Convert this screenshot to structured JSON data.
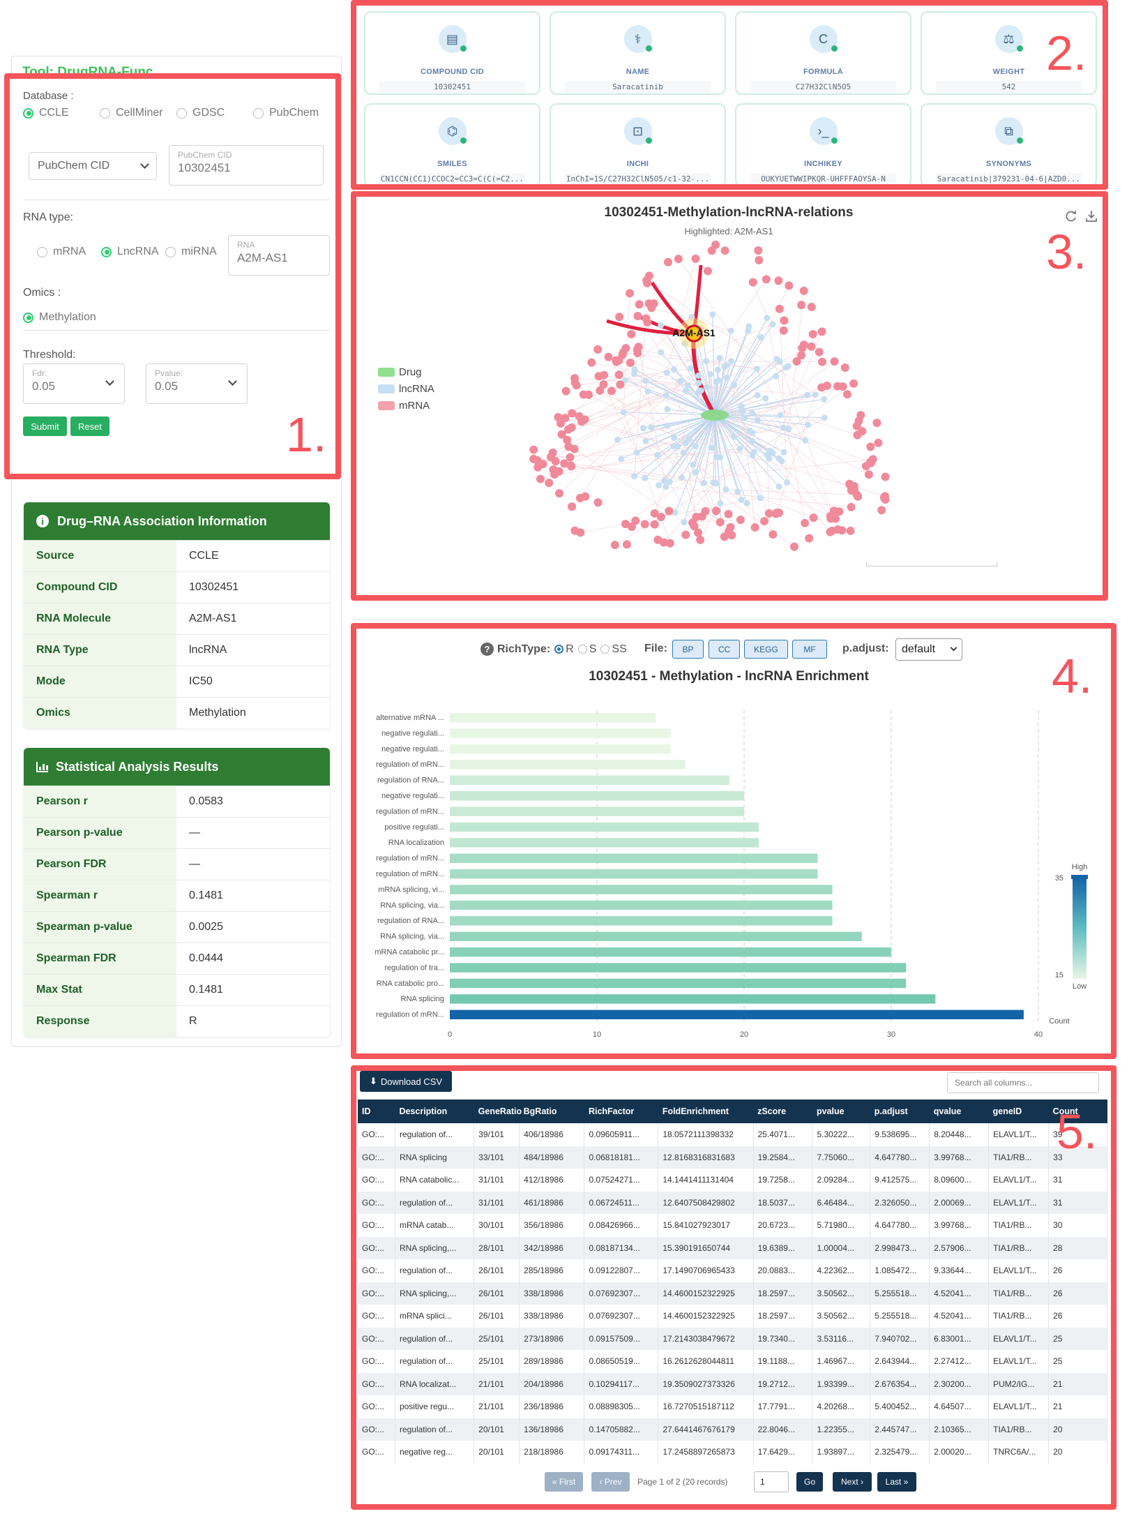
{
  "tool_title": "Tool: DrugRNA-Func",
  "annotations": [
    "1.",
    "2.",
    "3.",
    "4.",
    "5."
  ],
  "form": {
    "database_label": "Database :",
    "databases": [
      "CCLE",
      "CellMiner",
      "GDSC",
      "PubChem"
    ],
    "database_selected": "CCLE",
    "id_type": "PubChem CID",
    "cid_label": "PubChem CID",
    "cid_value": "10302451",
    "rna_type_label": "RNA type:",
    "rna_types": [
      "mRNA",
      "LncRNA",
      "miRNA"
    ],
    "rna_type_selected": "LncRNA",
    "rna_label": "RNA",
    "rna_value": "A2M-AS1",
    "omics_label": "Omics :",
    "omics": "Methylation",
    "threshold_label": "Threshold:",
    "fdr_label": "Fdr:",
    "fdr_value": "0.05",
    "pvalue_label": "Pvalue:",
    "pvalue_value": "0.05",
    "submit": "Submit",
    "reset": "Reset"
  },
  "assoc": {
    "title": "Drug–RNA Association Information",
    "rows": [
      {
        "k": "Source",
        "v": "CCLE"
      },
      {
        "k": "Compound CID",
        "v": "10302451"
      },
      {
        "k": "RNA Molecule",
        "v": "A2M-AS1"
      },
      {
        "k": "RNA Type",
        "v": "lncRNA"
      },
      {
        "k": "Mode",
        "v": "IC50"
      },
      {
        "k": "Omics",
        "v": "Methylation"
      }
    ]
  },
  "stats": {
    "title": "Statistical Analysis Results",
    "rows": [
      {
        "k": "Pearson r",
        "v": "0.0583"
      },
      {
        "k": "Pearson p-value",
        "v": "—"
      },
      {
        "k": "Pearson FDR",
        "v": "—"
      },
      {
        "k": "Spearman r",
        "v": "0.1481"
      },
      {
        "k": "Spearman p-value",
        "v": "0.0025"
      },
      {
        "k": "Spearman FDR",
        "v": "0.0444"
      },
      {
        "k": "Max Stat",
        "v": "0.1481"
      },
      {
        "k": "Response",
        "v": "R"
      }
    ]
  },
  "compound": [
    {
      "label": "COMPOUND CID",
      "value": "10302451",
      "icon": "pill-bottle-icon"
    },
    {
      "label": "NAME",
      "value": "Saracatinib",
      "icon": "capsule-icon"
    },
    {
      "label": "FORMULA",
      "value": "C27H32ClN5O5",
      "icon": "formula-icon"
    },
    {
      "label": "WEIGHT",
      "value": "542",
      "icon": "scale-icon"
    },
    {
      "label": "SMILES",
      "value": "CN1CCN(CC1)CCOC2=CC3=C(C(=C2...",
      "icon": "molecule-icon"
    },
    {
      "label": "INCHI",
      "value": "InChI=1S/C27H32ClN5O5/c1-32-...",
      "icon": "scan-icon"
    },
    {
      "label": "INCHIKEY",
      "value": "OUKYUETWWIPKQR-UHFFFAOYSA-N",
      "icon": "terminal-icon"
    },
    {
      "label": "SYNONYMS",
      "value": "Saracatinib|379231-04-6|AZD0...",
      "icon": "copy-icon"
    }
  ],
  "network": {
    "title": "10302451-Methylation-lncRNA-relations",
    "subtitle": "Highlighted: A2M-AS1",
    "highlight_label": "A2M-AS1",
    "legend": [
      {
        "name": "Drug",
        "color": "#90e090"
      },
      {
        "name": "lncRNA",
        "color": "#c6def2"
      },
      {
        "name": "mRNA",
        "color": "#f4a2ae"
      }
    ]
  },
  "enrichment": {
    "rich_type_label": "RichType:",
    "rich_types": [
      "R",
      "S",
      "SS"
    ],
    "rich_type_selected": "R",
    "file_label": "File:",
    "files": [
      "BP",
      "CC",
      "KEGG",
      "MF"
    ],
    "padjust_label": "p.adjust:",
    "padjust_value": "default"
  },
  "chart_data": {
    "type": "bar",
    "title": "10302451 - Methylation - lncRNA Enrichment",
    "orientation": "horizontal",
    "categories": [
      "alternative mRNA ...",
      "negative regulati...",
      "negative regulati...",
      "regulation of mRN...",
      "regulation of RNA...",
      "negative regulati...",
      "regulation of mRN...",
      "positive regulati...",
      "RNA localization",
      "regulation of mRN...",
      "regulation of mRN...",
      "mRNA splicing, vi...",
      "RNA splicing, via...",
      "regulation of RNA...",
      "RNA splicing, via...",
      "mRNA catabolic pr...",
      "regulation of tra...",
      "RNA catabolic pro...",
      "RNA splicing",
      "regulation of mRN..."
    ],
    "values": [
      14,
      15,
      15,
      16,
      19,
      20,
      20,
      21,
      21,
      25,
      25,
      26,
      26,
      26,
      28,
      30,
      31,
      31,
      33,
      39
    ],
    "xlim": [
      0,
      40
    ],
    "xticks": [
      0,
      10,
      20,
      30,
      40
    ],
    "colorbar": {
      "high_label": "High",
      "low_label": "Low",
      "max": "35",
      "min": "15",
      "title": "Count",
      "high_color": "#1464a8",
      "low_color": "#e8f6e4"
    },
    "grid": true
  },
  "table": {
    "download_label": "Download CSV",
    "search_placeholder": "Search all columns...",
    "columns": [
      "ID",
      "Description",
      "GeneRatio",
      "BgRatio",
      "RichFactor",
      "FoldEnrichment",
      "zScore",
      "pvalue",
      "p.adjust",
      "qvalue",
      "geneID",
      "Count"
    ],
    "rows": [
      [
        "GO:...",
        "regulation of...",
        "39/101",
        "406/18986",
        "0.09605911...",
        "18.0572111398332",
        "25.4071...",
        "5.30222...",
        "9.538695...",
        "8.20448...",
        "ELAVL1/T...",
        "39"
      ],
      [
        "GO:...",
        "RNA splicing",
        "33/101",
        "484/18986",
        "0.06818181...",
        "12.8168316831683",
        "19.2584...",
        "7.75060...",
        "4.647780...",
        "3.99768...",
        "TIA1/RB...",
        "33"
      ],
      [
        "GO:...",
        "RNA catabolic...",
        "31/101",
        "412/18986",
        "0.07524271...",
        "14.1441411131404",
        "19.7258...",
        "2.09284...",
        "9.412575...",
        "8.09600...",
        "ELAVL1/T...",
        "31"
      ],
      [
        "GO:...",
        "regulation of...",
        "31/101",
        "461/18986",
        "0.06724511...",
        "12.6407508429802",
        "18.5037...",
        "6.46484...",
        "2.326050...",
        "2.00069...",
        "ELAVL1/T...",
        "31"
      ],
      [
        "GO:...",
        "mRNA catab...",
        "30/101",
        "356/18986",
        "0.08426966...",
        "15.841027923017",
        "20.6723...",
        "5.71980...",
        "4.647780...",
        "3.99768...",
        "TIA1/RB...",
        "30"
      ],
      [
        "GO:...",
        "RNA splicing,...",
        "28/101",
        "342/18986",
        "0.08187134...",
        "15.390191650744",
        "19.6389...",
        "1.00004...",
        "2.998473...",
        "2.57906...",
        "TIA1/RB...",
        "28"
      ],
      [
        "GO:...",
        "regulation of...",
        "26/101",
        "285/18986",
        "0.09122807...",
        "17.1490706965433",
        "20.0883...",
        "4.22362...",
        "1.085472...",
        "9.33644...",
        "ELAVL1/T...",
        "26"
      ],
      [
        "GO:...",
        "RNA splicing,...",
        "26/101",
        "338/18986",
        "0.07692307...",
        "14.4600152322925",
        "18.2597...",
        "3.50562...",
        "5.255518...",
        "4.52041...",
        "TIA1/RB...",
        "26"
      ],
      [
        "GO:...",
        "mRNA splici...",
        "26/101",
        "338/18986",
        "0.07692307...",
        "14.4600152322925",
        "18.2597...",
        "3.50562...",
        "5.255518...",
        "4.52041...",
        "TIA1/RB...",
        "26"
      ],
      [
        "GO:...",
        "regulation of...",
        "25/101",
        "273/18986",
        "0.09157509...",
        "17.2143038479672",
        "19.7340...",
        "3.53116...",
        "7.940702...",
        "6.83001...",
        "ELAVL1/T...",
        "25"
      ],
      [
        "GO:...",
        "regulation of...",
        "25/101",
        "289/18986",
        "0.08650519...",
        "16.2612628044811",
        "19.1188...",
        "1.46967...",
        "2.643944...",
        "2.27412...",
        "ELAVL1/T...",
        "25"
      ],
      [
        "GO:...",
        "RNA localizat...",
        "21/101",
        "204/18986",
        "0.10294117...",
        "19.3509027373326",
        "19.2712...",
        "1.93399...",
        "2.676354...",
        "2.30200...",
        "PUM2/IG...",
        "21"
      ],
      [
        "GO:...",
        "positive regu...",
        "21/101",
        "236/18986",
        "0.08898305...",
        "16.7270515187112",
        "17.7791...",
        "4.20268...",
        "5.400452...",
        "4.64507...",
        "ELAVL1/T...",
        "21"
      ],
      [
        "GO:...",
        "regulation of...",
        "20/101",
        "136/18986",
        "0.14705882...",
        "27.6441467676179",
        "22.8046...",
        "1.22355...",
        "2.445747...",
        "2.10365...",
        "TIA1/RB...",
        "20"
      ],
      [
        "GO:...",
        "negative reg...",
        "20/101",
        "218/18986",
        "0.09174311...",
        "17.2458897265873",
        "17.6429...",
        "1.93897...",
        "2.325479...",
        "2.00020...",
        "TNRC6A/...",
        "20"
      ]
    ],
    "pager": {
      "first": "« First",
      "prev": "‹ Prev",
      "info": "Page 1 of 2 (20 records)",
      "page": "1",
      "go": "Go",
      "next": "Next ›",
      "last": "Last »"
    }
  }
}
